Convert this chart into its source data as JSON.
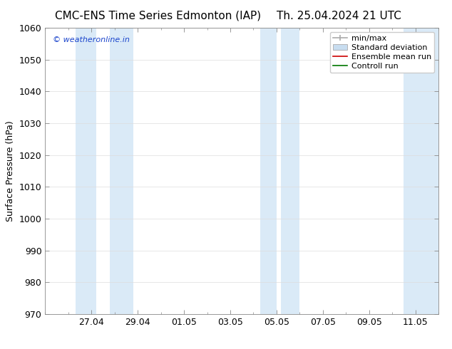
{
  "title_left": "CMC-ENS Time Series Edmonton (IAP)",
  "title_right": "Th. 25.04.2024 21 UTC",
  "ylabel": "Surface Pressure (hPa)",
  "ylim": [
    970,
    1060
  ],
  "yticks": [
    970,
    980,
    990,
    1000,
    1010,
    1020,
    1030,
    1040,
    1050,
    1060
  ],
  "x_tick_labels": [
    "27.04",
    "29.04",
    "01.05",
    "03.05",
    "05.05",
    "07.05",
    "09.05",
    "11.05"
  ],
  "x_tick_positions": [
    2,
    4,
    6,
    8,
    10,
    12,
    14,
    16
  ],
  "xlim": [
    0,
    17.0
  ],
  "band_ranges": [
    [
      1.5,
      2.5
    ],
    [
      3.5,
      4.5
    ],
    [
      9.5,
      10.5
    ],
    [
      10.5,
      11.3
    ],
    [
      15.5,
      17.0
    ]
  ],
  "band_color": "#daeaf7",
  "watermark": "© weatheronline.in",
  "watermark_color": "#1a44cc",
  "legend_entries": [
    "min/max",
    "Standard deviation",
    "Ensemble mean run",
    "Controll run"
  ],
  "minmax_color": "#aaaaaa",
  "std_facecolor": "#c8ddf0",
  "std_edgecolor": "#aaaaaa",
  "ens_color": "#cc0000",
  "ctrl_color": "#007700",
  "bg_color": "#ffffff",
  "spine_color": "#888888",
  "grid_color": "#dddddd",
  "title_fontsize": 11,
  "axis_label_fontsize": 9,
  "tick_label_fontsize": 9,
  "legend_fontsize": 8
}
